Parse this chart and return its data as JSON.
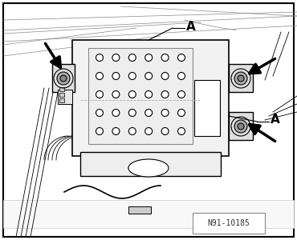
{
  "fig_width": 3.7,
  "fig_height": 3.0,
  "dpi": 100,
  "bg_color": "#ffffff",
  "line_color": "#000000",
  "gray_light": "#e8e8e8",
  "gray_mid": "#cccccc",
  "gray_dark": "#aaaaaa",
  "ref_text": "N91-10185",
  "label_A1": "A",
  "label_A2": "A",
  "dots_rows": 5,
  "dots_cols": 6
}
